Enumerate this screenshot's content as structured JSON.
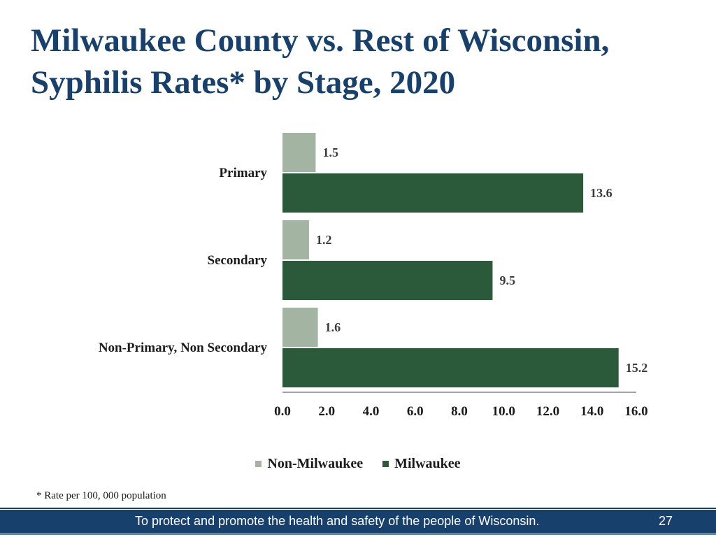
{
  "slide": {
    "title_line1": "Milwaukee County vs. Rest of Wisconsin,",
    "title_line2": "Syphilis Rates* by Stage, 2020",
    "footnote": "* Rate per 100, 000 population",
    "footer_text": "To protect and promote the health and safety of the people of Wisconsin.",
    "page_number": "27"
  },
  "colors": {
    "title": "#17406d",
    "non_milwaukee": "#a3b5a2",
    "milwaukee": "#2b5a3a",
    "footer_bg": "#17406d"
  },
  "chart_data": {
    "type": "bar",
    "orientation": "horizontal",
    "title": "",
    "xlabel": "",
    "ylabel": "",
    "categories": [
      "Primary",
      "Secondary",
      "Non-Primary, Non Secondary"
    ],
    "series": [
      {
        "name": "Non-Milwaukee",
        "values": [
          1.5,
          1.2,
          1.6
        ]
      },
      {
        "name": "Milwaukee",
        "values": [
          13.6,
          9.5,
          15.2
        ]
      }
    ],
    "xlim": [
      0,
      16
    ],
    "ticks": [
      "0.0",
      "2.0",
      "4.0",
      "6.0",
      "8.0",
      "10.0",
      "12.0",
      "14.0",
      "16.0"
    ],
    "value_labels": [
      [
        "1.5",
        "1.2",
        "1.6"
      ],
      [
        "13.6",
        "9.5",
        "15.2"
      ]
    ],
    "grid": false,
    "legend_position": "bottom"
  }
}
